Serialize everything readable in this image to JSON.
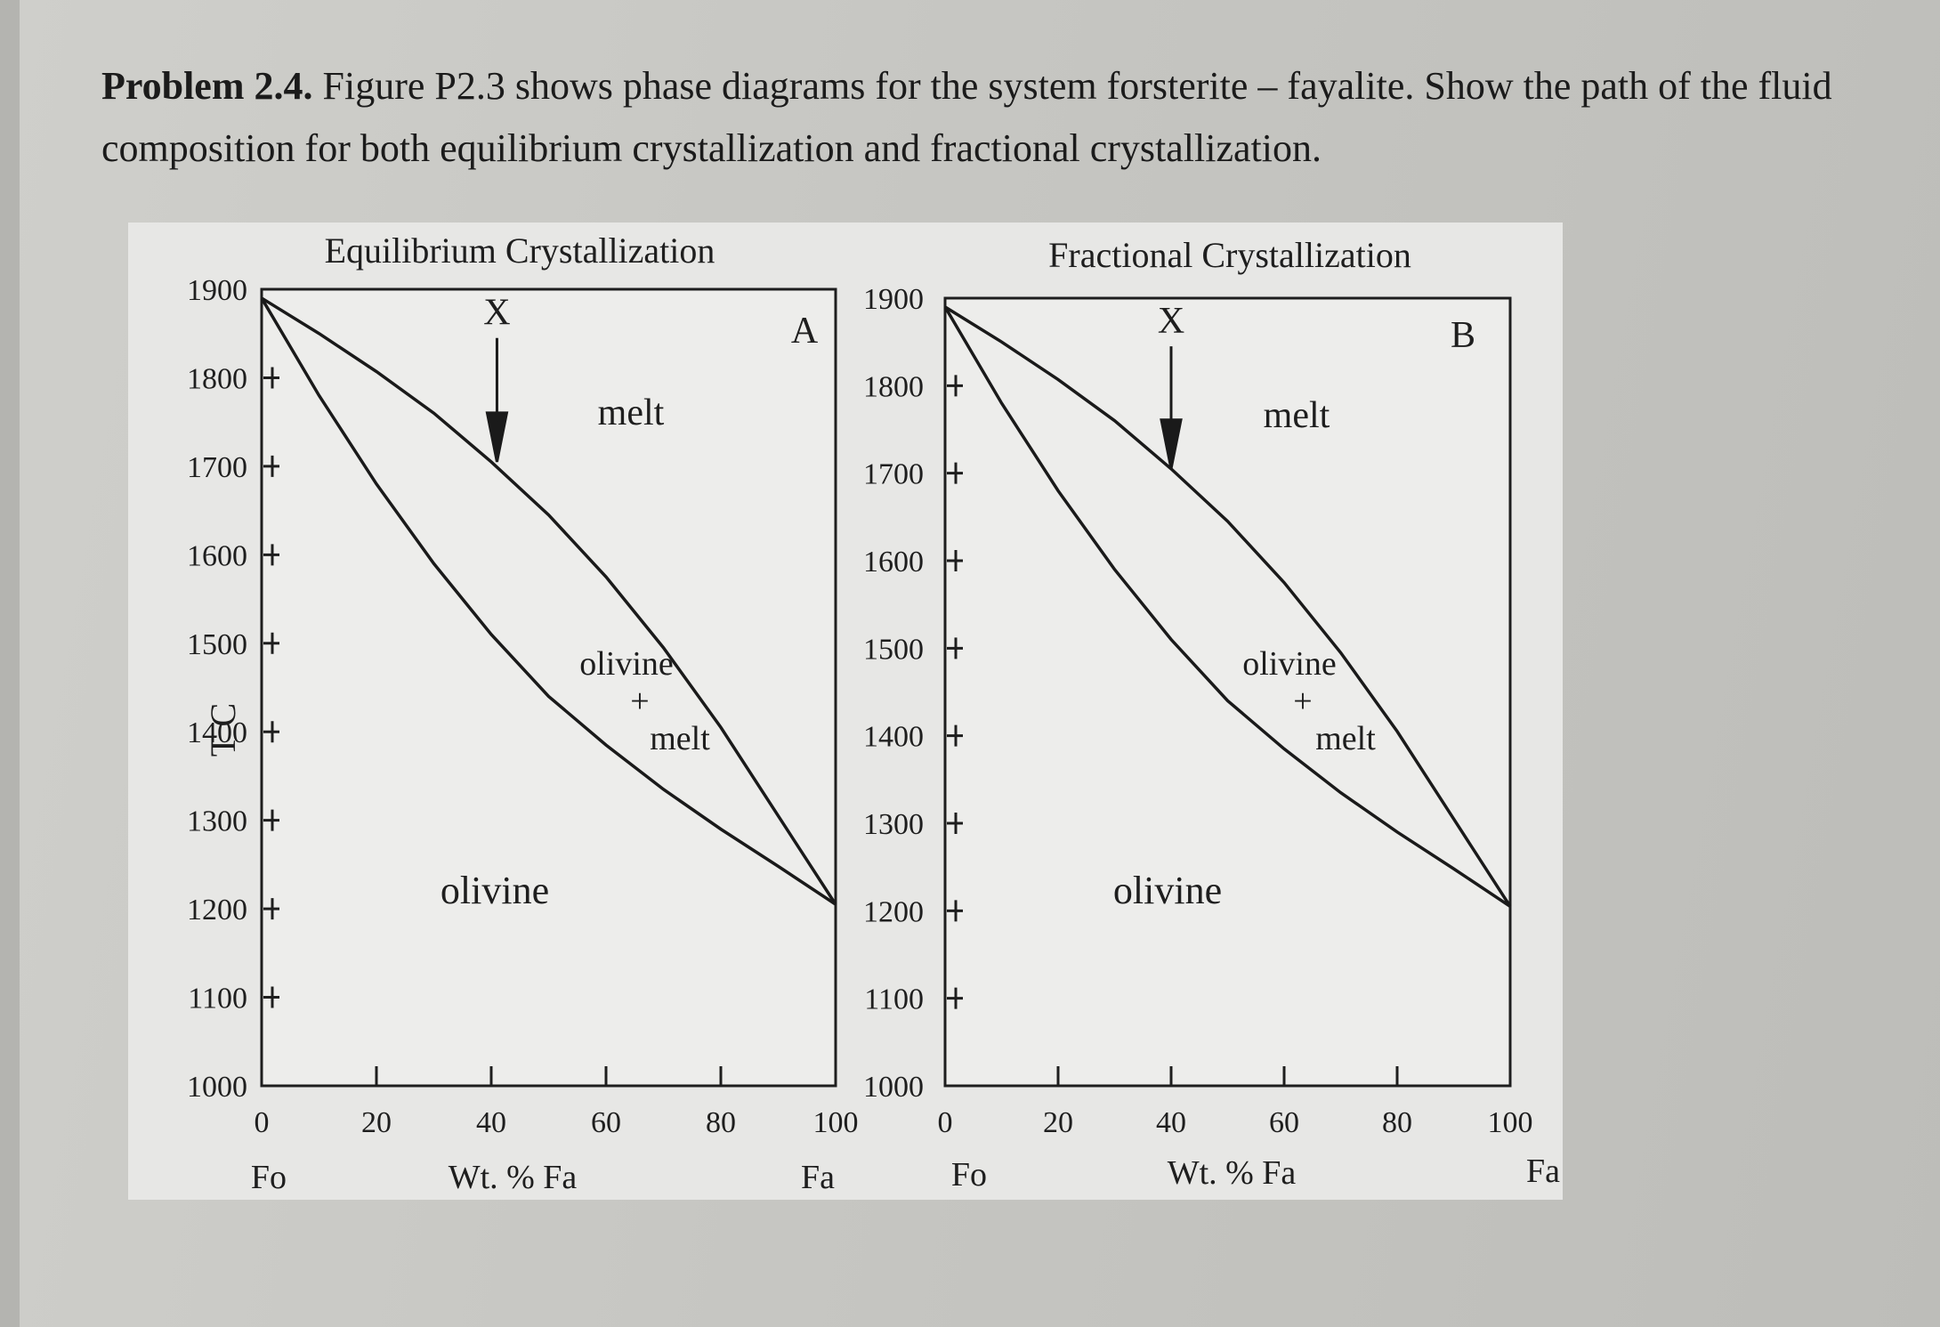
{
  "problem": {
    "lead": "Problem 2.4.",
    "text": "Figure P2.3 shows phase diagrams for the system forsterite – fayalite. Show the path of the fluid composition for both equilibrium crystallization and fractional crystallization."
  },
  "colors": {
    "page": "#c9c9c5",
    "figure_bg": "#e7e7e5",
    "ink": "#1e1e1e"
  },
  "chart_data": [
    {
      "type": "line",
      "panel_letter": "A",
      "title": "Equilibrium Crystallization",
      "ylabel": "T C",
      "xlabel": "Wt. % Fa",
      "x_end_labels": [
        "Fo",
        "Fa"
      ],
      "xlim": [
        0,
        100
      ],
      "ylim": [
        1000,
        1900
      ],
      "xticks": [
        0,
        20,
        40,
        60,
        80,
        100
      ],
      "yticks": [
        1000,
        1100,
        1200,
        1300,
        1400,
        1500,
        1600,
        1700,
        1800,
        1900
      ],
      "series": [
        {
          "name": "liquidus",
          "x": [
            0,
            10,
            20,
            30,
            40,
            50,
            60,
            70,
            80,
            90,
            100
          ],
          "y": [
            1890,
            1850,
            1807,
            1760,
            1705,
            1645,
            1575,
            1495,
            1405,
            1305,
            1205
          ]
        },
        {
          "name": "solidus",
          "x": [
            0,
            10,
            20,
            30,
            40,
            50,
            60,
            70,
            80,
            90,
            100
          ],
          "y": [
            1890,
            1780,
            1680,
            1590,
            1510,
            1440,
            1385,
            1335,
            1290,
            1248,
            1205
          ]
        }
      ],
      "marker": {
        "label": "X",
        "x": 41,
        "y_start": 1850,
        "y_end": 1705
      },
      "regions": [
        "melt",
        "olivine",
        "+",
        "melt",
        "olivine"
      ]
    },
    {
      "type": "line",
      "panel_letter": "B",
      "title": "Fractional Crystallization",
      "ylabel": "",
      "xlabel": "Wt. % Fa",
      "x_end_labels": [
        "Fo",
        "Fa"
      ],
      "xlim": [
        0,
        100
      ],
      "ylim": [
        1000,
        1900
      ],
      "xticks": [
        0,
        20,
        40,
        60,
        80,
        100
      ],
      "yticks": [
        1000,
        1100,
        1200,
        1300,
        1400,
        1500,
        1600,
        1700,
        1800,
        1900
      ],
      "series": [
        {
          "name": "liquidus",
          "x": [
            0,
            10,
            20,
            30,
            40,
            50,
            60,
            70,
            80,
            90,
            100
          ],
          "y": [
            1890,
            1850,
            1807,
            1760,
            1705,
            1645,
            1575,
            1495,
            1405,
            1305,
            1205
          ]
        },
        {
          "name": "solidus",
          "x": [
            0,
            10,
            20,
            30,
            40,
            50,
            60,
            70,
            80,
            90,
            100
          ],
          "y": [
            1890,
            1780,
            1680,
            1590,
            1510,
            1440,
            1385,
            1335,
            1290,
            1248,
            1205
          ]
        }
      ],
      "marker": {
        "label": "X",
        "x": 40,
        "y_start": 1850,
        "y_end": 1705
      },
      "regions": [
        "melt",
        "olivine",
        "+",
        "melt",
        "olivine"
      ]
    }
  ]
}
